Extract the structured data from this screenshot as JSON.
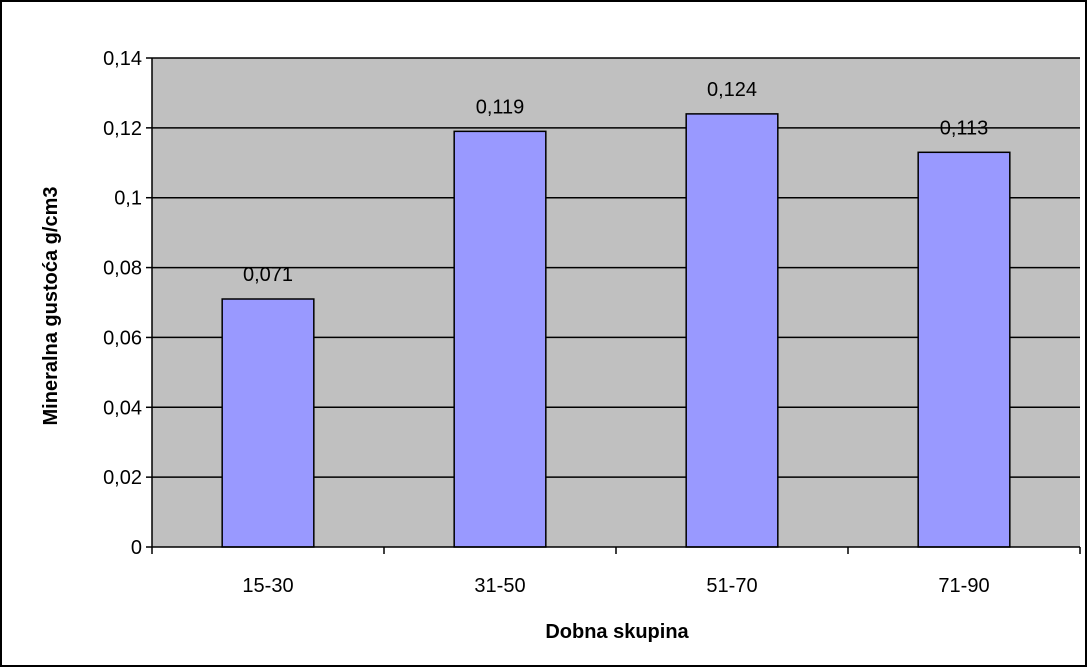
{
  "chart_data": {
    "type": "bar",
    "title": "",
    "xlabel": "Dobna skupina",
    "ylabel": "Mineralna gustoća g/cm3",
    "categories": [
      "15-30",
      "31-50",
      "51-70",
      "71-90"
    ],
    "series": [
      {
        "values": [
          0.071,
          0.119,
          0.124,
          0.113
        ]
      }
    ],
    "data_labels": [
      "0,071",
      "0,119",
      "0,124",
      "0,113"
    ],
    "ylim": [
      0,
      0.14
    ],
    "yticks": [
      0,
      0.02,
      0.04,
      0.06,
      0.08,
      0.1,
      0.12,
      0.14
    ],
    "ytick_labels": [
      "0",
      "0,02",
      "0,04",
      "0,06",
      "0,08",
      "0,1",
      "0,12",
      "0,14"
    ],
    "grid": true,
    "legend": "none",
    "colors": {
      "bar_fill": "#9999ff",
      "bar_stroke": "#000000",
      "plot_background": "#c0c0c0",
      "gridline": "#000000",
      "frame": "#000000"
    }
  }
}
